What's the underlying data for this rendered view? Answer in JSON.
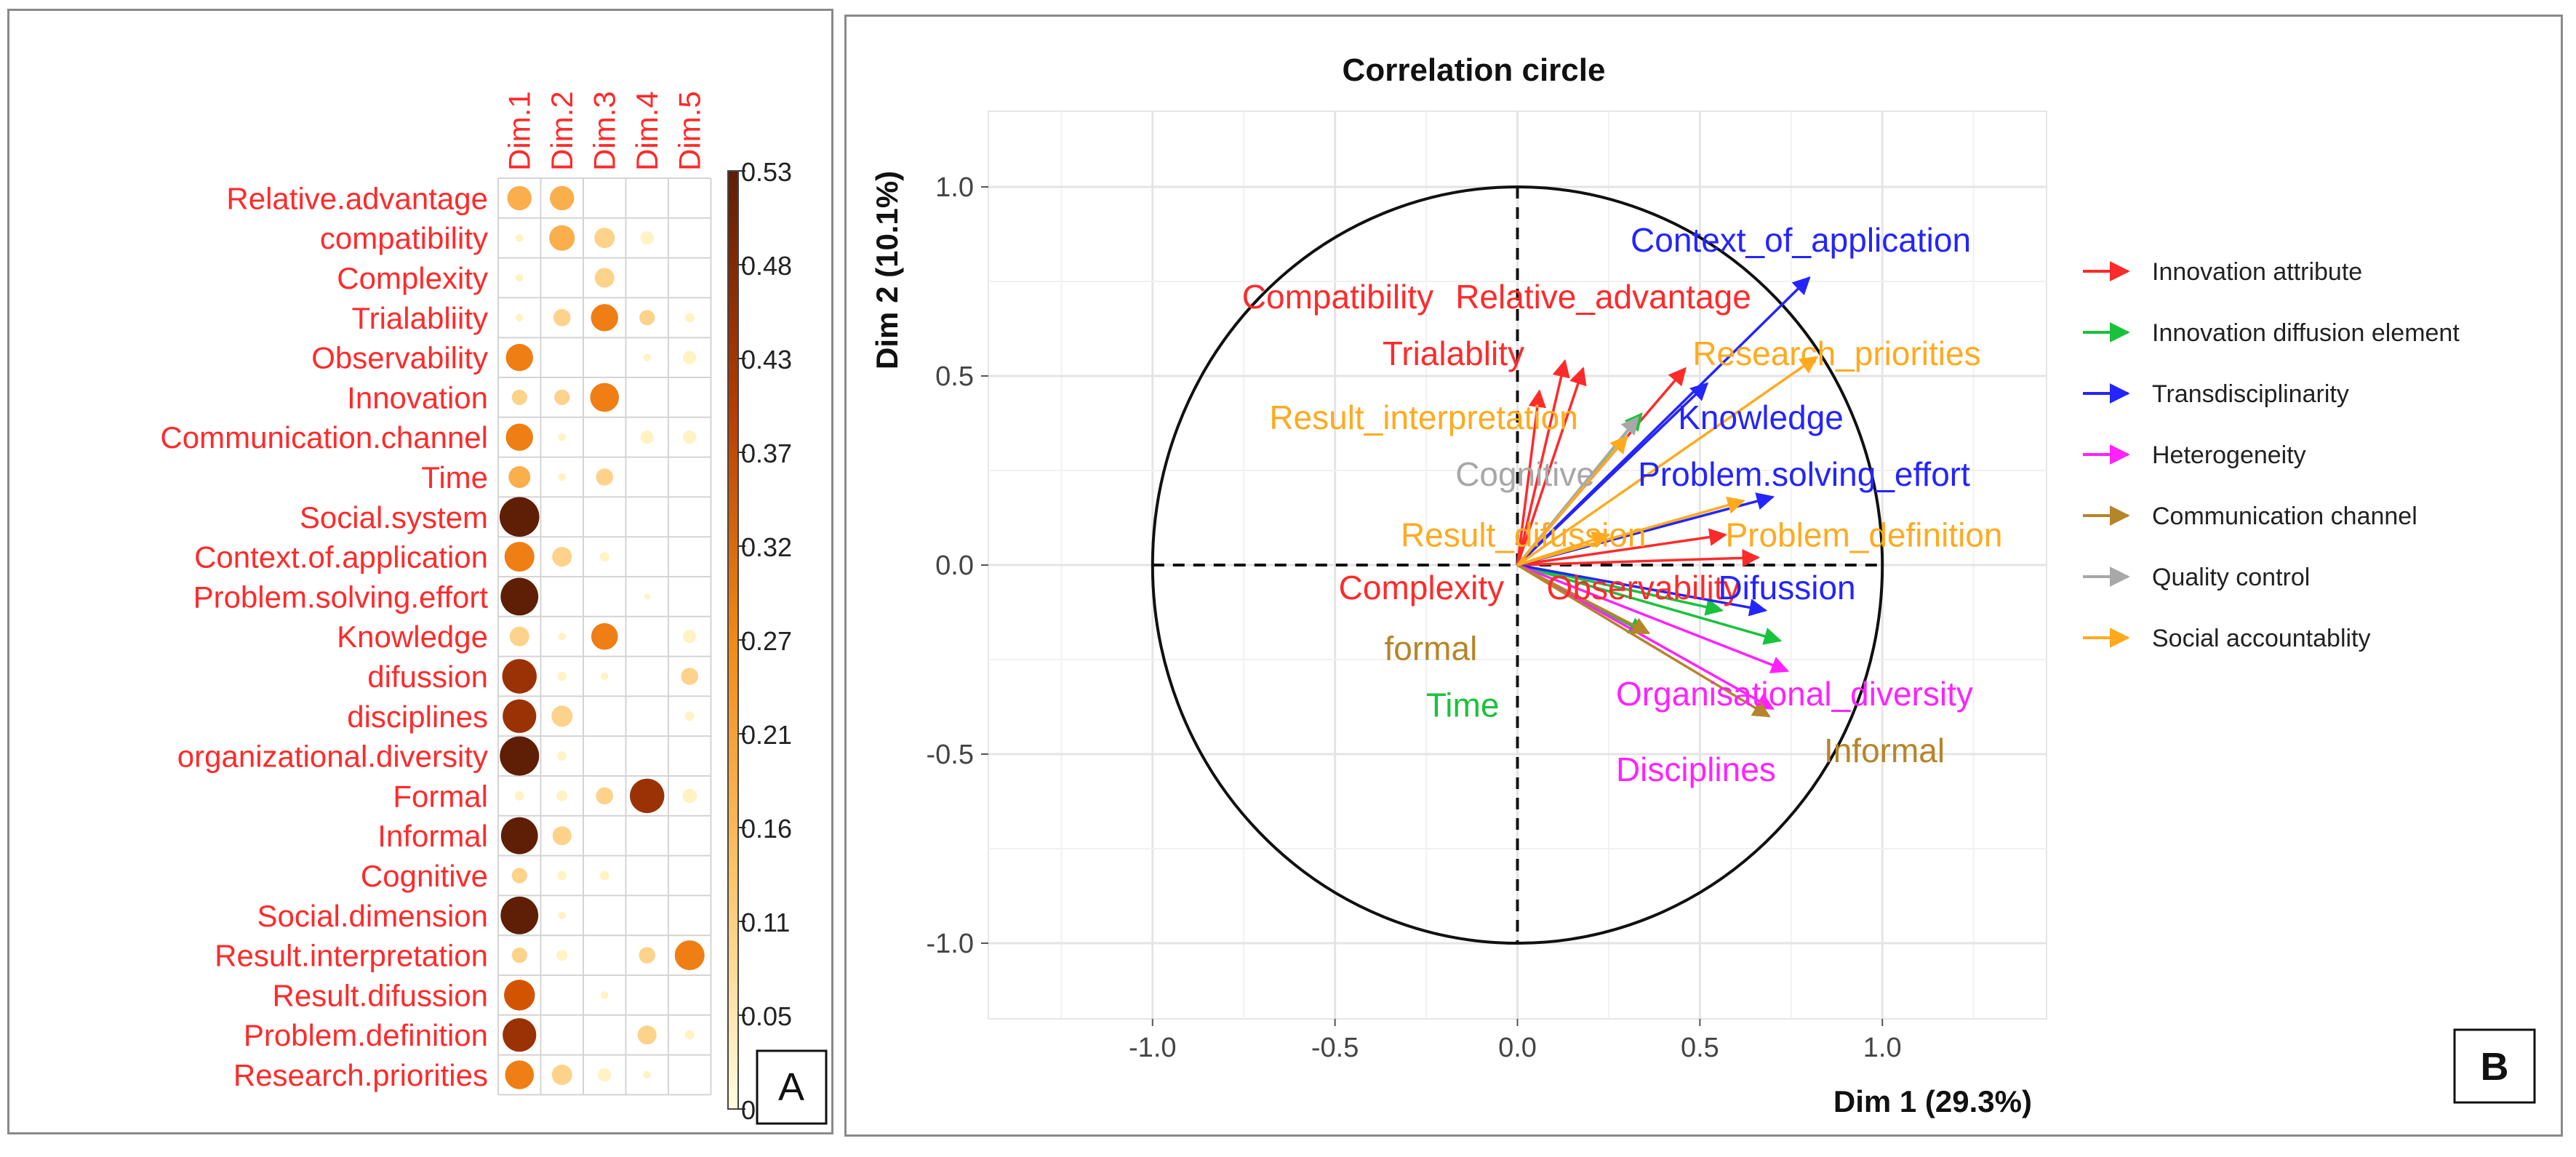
{
  "chart_data": [
    {
      "panel": "A",
      "type": "heatmap",
      "subtype": "correlation-dot-plot",
      "columns": [
        "Dim.1",
        "Dim.2",
        "Dim.3",
        "Dim.4",
        "Dim.5"
      ],
      "rows": [
        "Relative.advantage",
        "compatibility",
        "Complexity",
        "Trialabliity",
        "Observability",
        "Innovation",
        "Communication.channel",
        "Time",
        "Social.system",
        "Context.of.application",
        "Problem.solving.effort",
        "Knowledge",
        "difussion",
        "disciplines",
        "organizational.diversity",
        "Formal",
        "Informal",
        "Cognitive",
        "Social.dimension",
        "Result.interpretation",
        "Result.difussion",
        "Problem.definition",
        "Research.priorities"
      ],
      "values": [
        [
          0.2,
          0.2,
          0.0,
          0.0,
          0.0
        ],
        [
          0.02,
          0.22,
          0.14,
          0.06,
          0.0
        ],
        [
          0.02,
          0.0,
          0.13,
          0.0,
          0.0
        ],
        [
          0.02,
          0.1,
          0.25,
          0.08,
          0.03
        ],
        [
          0.25,
          0.0,
          0.0,
          0.02,
          0.06
        ],
        [
          0.08,
          0.08,
          0.28,
          0.0,
          0.0
        ],
        [
          0.25,
          0.02,
          0.0,
          0.06,
          0.06
        ],
        [
          0.16,
          0.02,
          0.1,
          0.0,
          0.0
        ],
        [
          0.53,
          0.0,
          0.0,
          0.0,
          0.0
        ],
        [
          0.3,
          0.13,
          0.03,
          0.0,
          0.0
        ],
        [
          0.48,
          0.0,
          0.0,
          0.01,
          0.0
        ],
        [
          0.13,
          0.02,
          0.24,
          0.0,
          0.06
        ],
        [
          0.4,
          0.03,
          0.02,
          0.0,
          0.1
        ],
        [
          0.38,
          0.15,
          0.0,
          0.0,
          0.03
        ],
        [
          0.52,
          0.03,
          0.0,
          0.0,
          0.0
        ],
        [
          0.03,
          0.04,
          0.1,
          0.4,
          0.07
        ],
        [
          0.46,
          0.12,
          0.0,
          0.0,
          0.0
        ],
        [
          0.08,
          0.03,
          0.03,
          0.0,
          0.0
        ],
        [
          0.48,
          0.02,
          0.0,
          0.0,
          0.0
        ],
        [
          0.08,
          0.04,
          0.0,
          0.09,
          0.3
        ],
        [
          0.32,
          0.0,
          0.02,
          0.0,
          0.0
        ],
        [
          0.38,
          0.0,
          0.0,
          0.12,
          0.03
        ],
        [
          0.28,
          0.14,
          0.06,
          0.02,
          0.0
        ]
      ],
      "colorbar": {
        "ticks": [
          "0.53",
          "0.48",
          "0.43",
          "0.37",
          "0.32",
          "0.27",
          "0.21",
          "0.16",
          "0.11",
          "0.05",
          "0"
        ],
        "min": 0,
        "max": 0.53
      },
      "label_color": "#ff2a2a",
      "dot_colors": [
        "#fff3c4",
        "#fdd28a",
        "#fbae4c",
        "#ef7e14",
        "#d35400",
        "#9a3206",
        "#5e1f06"
      ]
    },
    {
      "panel": "B",
      "type": "scatter",
      "subtype": "pca-correlation-circle",
      "title": "Correlation circle",
      "xlabel": "Dim 1  (29.3%)",
      "ylabel": "Dim 2  (10.1%)",
      "xlim": [
        -1.45,
        1.45
      ],
      "ylim": [
        -1.2,
        1.2
      ],
      "x_ticks": [
        "-1.0",
        "-0.5",
        "0.0",
        "0.5",
        "1.0"
      ],
      "y_ticks": [
        "1.0",
        "0.5",
        "0.0",
        "-0.5",
        "-1.0"
      ],
      "legend": [
        {
          "label": "Innovation attribute",
          "color": "#ff2a2a"
        },
        {
          "label": "Innovation diffusion element",
          "color": "#19c23b"
        },
        {
          "label": "Transdisciplinarity",
          "color": "#2424ff"
        },
        {
          "label": "Heterogeneity",
          "color": "#ff22ff"
        },
        {
          "label": "Communication channel",
          "color": "#b5852a"
        },
        {
          "label": "Quality control",
          "color": "#a8a8a8"
        },
        {
          "label": "Social accountablity",
          "color": "#ffaa1e"
        }
      ],
      "vectors": [
        {
          "x": 0.13,
          "y": 0.54,
          "color": "#ff2a2a"
        },
        {
          "x": 0.46,
          "y": 0.52,
          "color": "#ff2a2a"
        },
        {
          "x": 0.18,
          "y": 0.52,
          "color": "#ff2a2a"
        },
        {
          "x": 0.57,
          "y": 0.08,
          "color": "#ff2a2a"
        },
        {
          "x": 0.66,
          "y": 0.02,
          "color": "#ff2a2a"
        },
        {
          "x": 0.06,
          "y": 0.46,
          "color": "#ff2a2a"
        },
        {
          "x": 0.34,
          "y": 0.4,
          "color": "#19c23b"
        },
        {
          "x": 0.56,
          "y": -0.12,
          "color": "#19c23b"
        },
        {
          "x": 0.72,
          "y": -0.2,
          "color": "#19c23b"
        },
        {
          "x": 0.35,
          "y": -0.18,
          "color": "#19c23b"
        },
        {
          "x": 0.8,
          "y": 0.76,
          "color": "#2424ff"
        },
        {
          "x": 0.7,
          "y": 0.18,
          "color": "#2424ff"
        },
        {
          "x": 0.52,
          "y": 0.48,
          "color": "#2424ff"
        },
        {
          "x": 0.68,
          "y": -0.12,
          "color": "#2424ff"
        },
        {
          "x": 0.7,
          "y": -0.38,
          "color": "#ff22ff"
        },
        {
          "x": 0.74,
          "y": -0.28,
          "color": "#ff22ff"
        },
        {
          "x": 0.69,
          "y": -0.4,
          "color": "#b5852a"
        },
        {
          "x": 0.36,
          "y": -0.18,
          "color": "#b5852a"
        },
        {
          "x": 0.33,
          "y": 0.39,
          "color": "#a8a8a8"
        },
        {
          "x": 0.82,
          "y": 0.55,
          "color": "#ffaa1e"
        },
        {
          "x": 0.62,
          "y": 0.17,
          "color": "#ffaa1e"
        },
        {
          "x": 0.3,
          "y": 0.34,
          "color": "#ffaa1e"
        },
        {
          "x": 0.25,
          "y": 0.08,
          "color": "#ffaa1e"
        }
      ],
      "labels": [
        {
          "text": "Context_of_application",
          "x": 0.31,
          "y": 0.86,
          "anchor": "start",
          "color": "#2424ff"
        },
        {
          "text": "Compatibility",
          "x": -0.23,
          "y": 0.71,
          "anchor": "end",
          "color": "#ff2a2a"
        },
        {
          "text": "Relative_advantage",
          "x": -0.17,
          "y": 0.71,
          "anchor": "start",
          "color": "#ff2a2a"
        },
        {
          "text": "Research_priorities",
          "x": 0.48,
          "y": 0.56,
          "anchor": "start",
          "color": "#ffaa1e"
        },
        {
          "text": "Trialablity",
          "x": -0.37,
          "y": 0.56,
          "anchor": "start",
          "color": "#ff2a2a"
        },
        {
          "text": "Result_interpretation",
          "x": -0.68,
          "y": 0.39,
          "anchor": "start",
          "color": "#ffaa1e"
        },
        {
          "text": "Knowledge",
          "x": 0.44,
          "y": 0.39,
          "anchor": "start",
          "color": "#2424ff"
        },
        {
          "text": "Cognitive",
          "x": -0.17,
          "y": 0.24,
          "anchor": "start",
          "color": "#a8a8a8"
        },
        {
          "text": "Problem.solving_effort",
          "x": 0.33,
          "y": 0.24,
          "anchor": "start",
          "color": "#2424ff"
        },
        {
          "text": "Result_difussion",
          "x": -0.32,
          "y": 0.08,
          "anchor": "start",
          "color": "#ffaa1e"
        },
        {
          "text": "Problem_definition",
          "x": 0.57,
          "y": 0.08,
          "anchor": "start",
          "color": "#ffaa1e"
        },
        {
          "text": "Complexity",
          "x": -0.49,
          "y": -0.06,
          "anchor": "start",
          "color": "#ff2a2a"
        },
        {
          "text": "Observability",
          "x": 0.08,
          "y": -0.06,
          "anchor": "start",
          "color": "#ff2a2a"
        },
        {
          "text": "Difussion",
          "x": 0.55,
          "y": -0.06,
          "anchor": "start",
          "color": "#2424ff"
        },
        {
          "text": "formal",
          "x": -0.11,
          "y": -0.22,
          "anchor": "end",
          "color": "#b5852a"
        },
        {
          "text": "Organisational_diversity",
          "x": 0.27,
          "y": -0.34,
          "anchor": "start",
          "color": "#ff22ff"
        },
        {
          "text": "Time",
          "x": -0.05,
          "y": -0.37,
          "anchor": "end",
          "color": "#19c23b"
        },
        {
          "text": "Informal",
          "x": 0.84,
          "y": -0.49,
          "anchor": "start",
          "color": "#b5852a"
        },
        {
          "text": "Disciplines",
          "x": 0.27,
          "y": -0.54,
          "anchor": "start",
          "color": "#ff22ff"
        }
      ]
    }
  ],
  "panels": {
    "a_badge": "A",
    "b_badge": "B"
  }
}
